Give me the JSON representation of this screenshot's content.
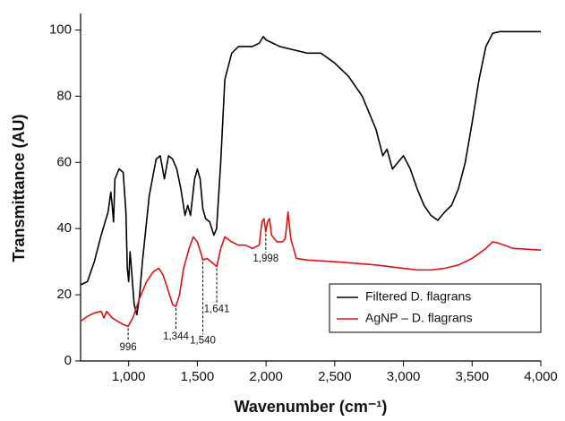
{
  "chart_data": {
    "type": "line",
    "xlabel": "Wavenumber (cm⁻¹)",
    "ylabel": "Transmittance (AU)",
    "xlim": [
      650,
      4000
    ],
    "ylim": [
      0,
      105
    ],
    "xticks": [
      {
        "value": 1000,
        "label": "1,000"
      },
      {
        "value": 1500,
        "label": "1,500"
      },
      {
        "value": 2000,
        "label": "2,000"
      },
      {
        "value": 2500,
        "label": "2,500"
      },
      {
        "value": 3000,
        "label": "3,000"
      },
      {
        "value": 3500,
        "label": "3,500"
      },
      {
        "value": 4000,
        "label": "4,000"
      }
    ],
    "yticks": [
      0,
      20,
      40,
      60,
      80,
      100
    ],
    "legend": "lower right",
    "series": [
      {
        "name": "Filtered D. flagrans",
        "color": "#000000",
        "x": [
          650,
          700,
          750,
          800,
          850,
          870,
          880,
          890,
          900,
          930,
          960,
          980,
          990,
          1000,
          1010,
          1020,
          1040,
          1060,
          1080,
          1100,
          1150,
          1200,
          1230,
          1260,
          1290,
          1320,
          1350,
          1380,
          1410,
          1430,
          1450,
          1480,
          1500,
          1520,
          1540,
          1560,
          1590,
          1620,
          1640,
          1670,
          1700,
          1750,
          1800,
          1900,
          1950,
          1980,
          2000,
          2050,
          2100,
          2200,
          2300,
          2400,
          2500,
          2600,
          2700,
          2800,
          2850,
          2880,
          2920,
          2960,
          3000,
          3050,
          3100,
          3150,
          3200,
          3250,
          3300,
          3350,
          3400,
          3450,
          3500,
          3550,
          3600,
          3650,
          3700,
          3800,
          4000
        ],
        "values": [
          23,
          24,
          30,
          38,
          45,
          51,
          47,
          42,
          55,
          58,
          57,
          45,
          28,
          24,
          33,
          28,
          17,
          14,
          20,
          30,
          50,
          61,
          62,
          55,
          62,
          61,
          58,
          52,
          44,
          47,
          44,
          55,
          58,
          55,
          46,
          43,
          42,
          38,
          40,
          60,
          85,
          93,
          95,
          95,
          96,
          98,
          97,
          96,
          95,
          94,
          93,
          93,
          90,
          86,
          80,
          70,
          62,
          64,
          58,
          60,
          62,
          58,
          52,
          47,
          44,
          42.5,
          45,
          47,
          52,
          60,
          72,
          85,
          95,
          99,
          99.5,
          99.5,
          99.5
        ]
      },
      {
        "name": "AgNP – D. flagrans",
        "color": "#e01010",
        "x": [
          650,
          700,
          750,
          800,
          820,
          840,
          880,
          920,
          960,
          996,
          1030,
          1080,
          1130,
          1180,
          1220,
          1250,
          1290,
          1320,
          1344,
          1370,
          1400,
          1440,
          1470,
          1500,
          1530,
          1540,
          1570,
          1600,
          1641,
          1670,
          1700,
          1750,
          1800,
          1850,
          1900,
          1950,
          1970,
          1985,
          1998,
          2010,
          2025,
          2040,
          2080,
          2120,
          2140,
          2160,
          2180,
          2220,
          2300,
          2500,
          2800,
          3000,
          3100,
          3200,
          3300,
          3400,
          3500,
          3600,
          3650,
          3700,
          3800,
          4000
        ],
        "values": [
          12,
          13.5,
          14.5,
          15,
          13,
          15,
          13,
          12,
          11,
          10.5,
          13,
          19,
          24,
          27,
          28,
          26,
          21,
          17,
          16.5,
          20,
          28,
          34,
          37.5,
          36,
          32,
          30.5,
          31,
          30,
          28.5,
          34,
          37.5,
          36,
          35,
          35,
          34,
          35,
          42,
          43,
          39,
          42,
          43,
          38,
          36,
          36,
          37,
          45,
          37,
          31,
          30.5,
          30,
          29,
          28,
          27.5,
          27.5,
          28,
          29,
          31,
          34,
          36,
          35.5,
          34,
          33.5
        ]
      }
    ],
    "annotations": [
      {
        "x": 996,
        "y": 10.5,
        "label": "996"
      },
      {
        "x": 1344,
        "y": 16.5,
        "label": "1,344"
      },
      {
        "x": 1540,
        "y": 30.5,
        "label": "1,540"
      },
      {
        "x": 1641,
        "y": 28.5,
        "label": "1,641"
      },
      {
        "x": 1998,
        "y": 39,
        "label": "1,998"
      }
    ]
  }
}
